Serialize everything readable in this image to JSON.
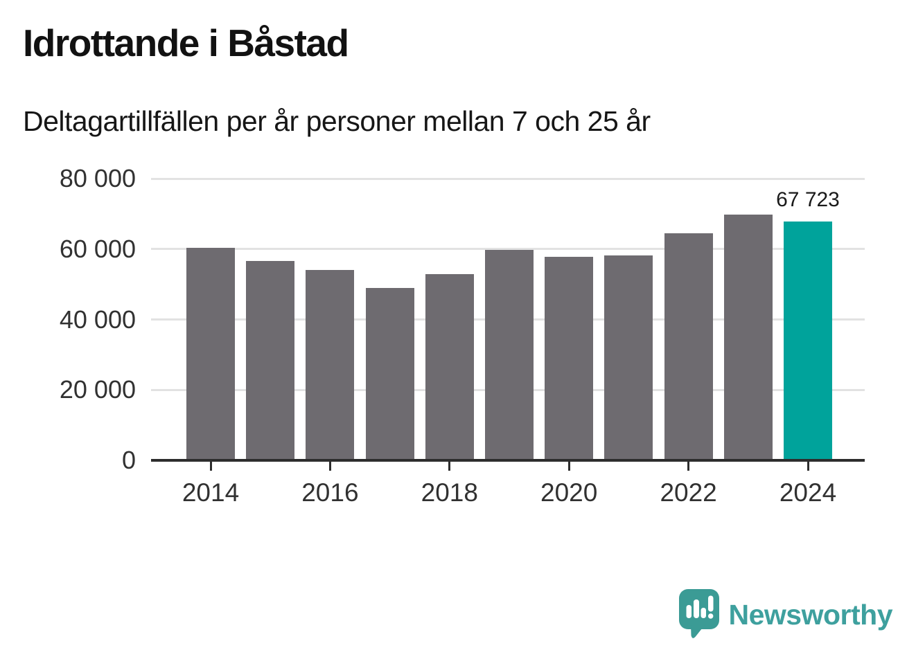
{
  "header": {
    "title": "Idrottande i Båstad",
    "subtitle": "Deltagartillfällen per år personer mellan 7 och 25 år"
  },
  "chart_data": {
    "type": "bar",
    "title": "Idrottande i Båstad",
    "subtitle": "Deltagartillfällen per år personer mellan 7 och 25 år",
    "categories": [
      2014,
      2015,
      2016,
      2017,
      2018,
      2019,
      2020,
      2021,
      2022,
      2023,
      2024
    ],
    "values": [
      60400,
      56600,
      54000,
      49000,
      52900,
      59700,
      57700,
      58200,
      64400,
      69700,
      67723
    ],
    "highlight_category": 2024,
    "highlight_value": 67723,
    "highlight_value_label": "67 723",
    "ylim": [
      0,
      80000
    ],
    "ytick_interval": 20000,
    "ytick_labels": [
      "0",
      "20 000",
      "40 000",
      "60 000",
      "80 000"
    ],
    "xtick_categories": [
      2014,
      2016,
      2018,
      2020,
      2022,
      2024
    ],
    "xtick_labels": [
      "2014",
      "2016",
      "2018",
      "2020",
      "2022",
      "2024"
    ],
    "grid": "horizontal",
    "legend": "none",
    "colors": {
      "bar": "#6e6b70",
      "highlight": "#00a39b",
      "gridline": "#e2e2e2",
      "axis": "#2d2d2d",
      "tick_label": "#313131",
      "value_label": "#1a1a1a"
    }
  },
  "footer": {
    "brand": "Newsworthy",
    "brand_color": "#3ea09e",
    "icon": "newsworthy-speech-bubble-bar-chart-icon",
    "icon_color": "#3b9b95"
  }
}
